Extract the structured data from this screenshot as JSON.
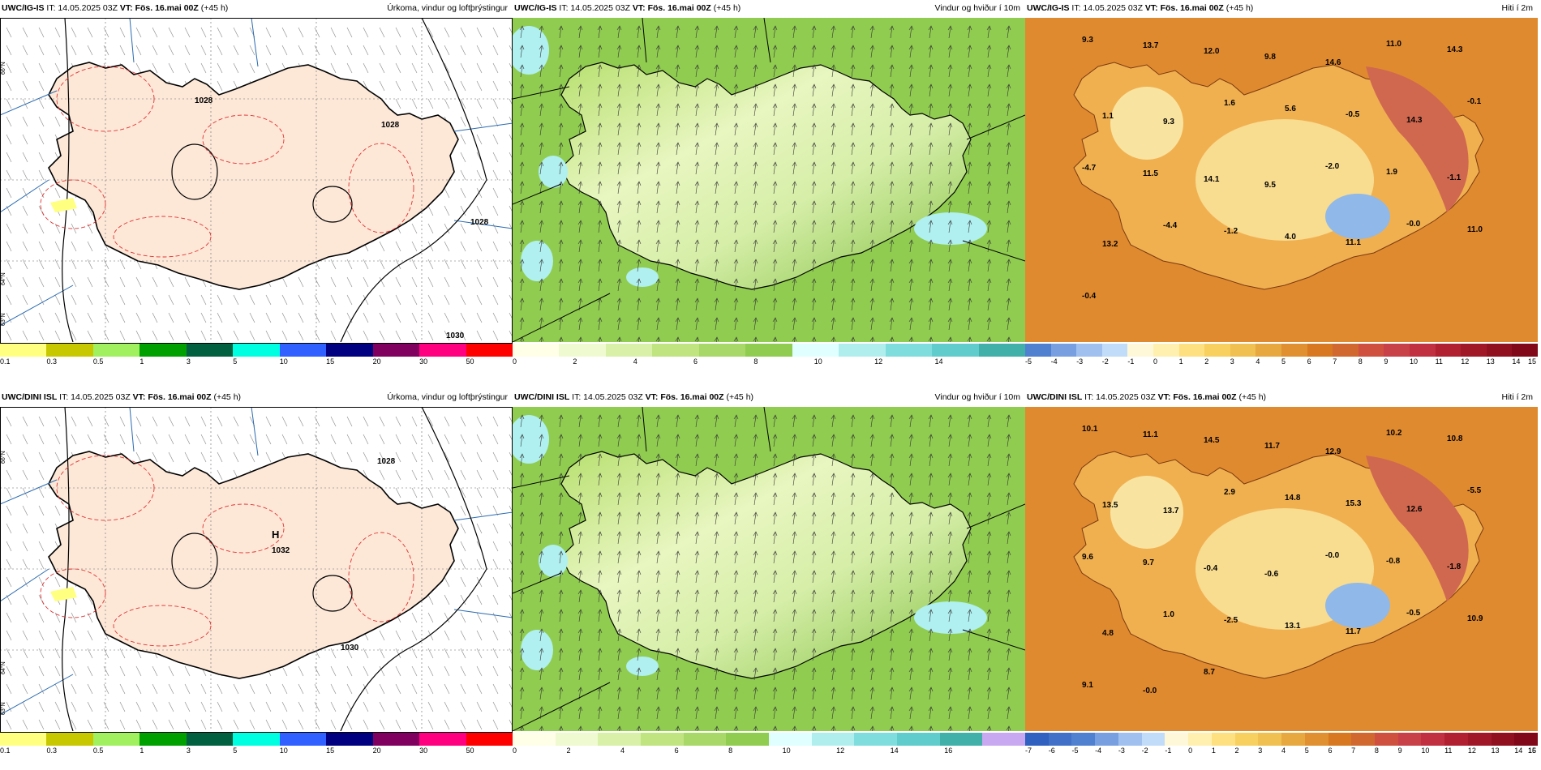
{
  "rows": [
    {
      "model": "UWC/IG-IS",
      "it": "IT: 14.05.2025 03Z",
      "vt": "VT: Fös. 16.mai 00Z",
      "lead": "(+45 h)"
    },
    {
      "model": "UWC/DINI ISL",
      "it": "IT: 14.05.2025 03Z",
      "vt": "VT: Fös. 16.mai 00Z",
      "lead": "(+45 h)"
    }
  ],
  "titles": {
    "precip": "Úrkoma, vindur og loftþrýstingur",
    "wind": "Vindur og hviður í 10m",
    "temp": "Hiti í 2m"
  },
  "precip_colors": [
    "#ffff80",
    "#c8c800",
    "#a0f060",
    "#00a000",
    "#006040",
    "#00ffe0",
    "#3060ff",
    "#000080",
    "#800060",
    "#ff0080",
    "#ff0000"
  ],
  "precip_ticks": [
    "0.1",
    "0.3",
    "0.5",
    "1",
    "3",
    "5",
    "10",
    "15",
    "20",
    "30",
    "50"
  ],
  "wind_colors_1": [
    "#ffffe8",
    "#f0fad0",
    "#d8f0a8",
    "#c0e480",
    "#a8d868",
    "#90cc50",
    "#e0ffff",
    "#b0eeee",
    "#80dddd",
    "#60cccc",
    "#40b0a8"
  ],
  "wind_ticks_1": [
    "0",
    "2",
    "4",
    "6",
    "8",
    "10",
    "12",
    "14"
  ],
  "wind_colors_2": [
    "#ffffe8",
    "#f0fad0",
    "#d8f0a8",
    "#c0e480",
    "#a8d868",
    "#90cc50",
    "#e0ffff",
    "#b0eeee",
    "#80dddd",
    "#60cccc",
    "#40b0a8",
    "#c8a8f0"
  ],
  "wind_ticks_2": [
    "0",
    "2",
    "4",
    "6",
    "8",
    "10",
    "12",
    "14",
    "16"
  ],
  "temp_colors_1": [
    "#5080d0",
    "#78a0e0",
    "#a0c0f0",
    "#c0dcf8",
    "#fff8d8",
    "#fff0b0",
    "#ffe080",
    "#f8d060",
    "#f0c050",
    "#e8a840",
    "#e09030",
    "#d87820",
    "#d06830",
    "#d05040",
    "#c84048",
    "#c03040",
    "#b02030",
    "#a01828",
    "#901020",
    "#800818"
  ],
  "temp_ticks_1": [
    "-5",
    "-4",
    "-3",
    "-2",
    "-1",
    "0",
    "1",
    "2",
    "3",
    "4",
    "5",
    "6",
    "7",
    "8",
    "9",
    "10",
    "11",
    "12",
    "13",
    "14",
    "15"
  ],
  "temp_colors_2": [
    "#3060c0",
    "#4070c8",
    "#5080d0",
    "#78a0e0",
    "#a0c0f0",
    "#c0dcf8",
    "#fff8d8",
    "#fff0b0",
    "#ffe080",
    "#f8d060",
    "#f0c050",
    "#e8a840",
    "#e09030",
    "#d87820",
    "#d06830",
    "#d05040",
    "#c84048",
    "#c03040",
    "#b02030",
    "#a01828",
    "#901020",
    "#800818"
  ],
  "temp_ticks_2": [
    "-7",
    "-6",
    "-5",
    "-4",
    "-3",
    "-2",
    "-1",
    "0",
    "1",
    "2",
    "3",
    "4",
    "5",
    "6",
    "7",
    "8",
    "9",
    "10",
    "11",
    "12",
    "13",
    "14",
    "15",
    "16"
  ],
  "temp_labels_top": [
    "9.3",
    "13.7",
    "12.0",
    "9.8",
    "14.6",
    "11.0",
    "14.3",
    "1.1",
    "9.3",
    "1.6",
    "5.6",
    "-0.5",
    "14.3",
    "-0.1",
    "-4.7",
    "11.5",
    "14.1",
    "9.5",
    "-2.0",
    "1.9",
    "-1.1",
    "13.2",
    "-4.4",
    "-1.2",
    "4.0",
    "11.1",
    "-0.0",
    "11.0",
    "-0.4"
  ],
  "temp_labels_bottom": [
    "10.1",
    "11.1",
    "14.5",
    "11.7",
    "12.9",
    "10.2",
    "10.8",
    "13.5",
    "13.7",
    "2.9",
    "14.8",
    "15.3",
    "12.6",
    "-5.5",
    "9.6",
    "9.7",
    "-0.4",
    "-0.6",
    "-0.0",
    "-0.8",
    "-1.8",
    "4.8",
    "1.0",
    "-2.5",
    "13.1",
    "11.7",
    "-0.5",
    "10.9",
    "9.1",
    "-0.0",
    "8.7"
  ],
  "pressure_labels_top": [
    "1028",
    "1028",
    "1030",
    "1028"
  ],
  "pressure_labels_bottom": [
    "H",
    "1032",
    "1028",
    "1030"
  ],
  "lat_labels": [
    "66°N",
    "64°N",
    "63°N"
  ]
}
